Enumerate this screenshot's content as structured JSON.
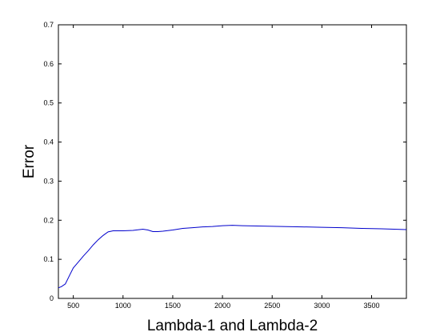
{
  "chart_data": {
    "type": "line",
    "title": "",
    "xlabel": "Lambda-1 and Lambda-2",
    "ylabel": "Error",
    "xlim": [
      350,
      3850
    ],
    "ylim": [
      0,
      0.7
    ],
    "xticks": [
      500,
      1000,
      1500,
      2000,
      2500,
      3000,
      3500
    ],
    "xtick_labels": [
      "500",
      "1000",
      "1500",
      "2000",
      "2500",
      "3000",
      "3500"
    ],
    "yticks": [
      0,
      0.1,
      0.2,
      0.3,
      0.4,
      0.5,
      0.6,
      0.7
    ],
    "ytick_labels": [
      "0",
      "0.1",
      "0.2",
      "0.3",
      "0.4",
      "0.5",
      "0.6",
      "0.7"
    ],
    "grid": false,
    "legend": null,
    "series": [
      {
        "name": "Error",
        "color": "#0000cc",
        "x": [
          350,
          380,
          420,
          460,
          500,
          550,
          600,
          650,
          700,
          750,
          800,
          850,
          900,
          950,
          1000,
          1100,
          1200,
          1250,
          1300,
          1350,
          1400,
          1500,
          1600,
          1700,
          1800,
          1900,
          2000,
          2100,
          2200,
          2400,
          2600,
          2800,
          3000,
          3200,
          3400,
          3600,
          3850
        ],
        "y": [
          0.027,
          0.03,
          0.037,
          0.058,
          0.078,
          0.093,
          0.108,
          0.122,
          0.137,
          0.15,
          0.161,
          0.17,
          0.173,
          0.173,
          0.173,
          0.174,
          0.177,
          0.175,
          0.171,
          0.171,
          0.172,
          0.175,
          0.179,
          0.181,
          0.183,
          0.184,
          0.186,
          0.187,
          0.186,
          0.185,
          0.184,
          0.183,
          0.182,
          0.181,
          0.179,
          0.178,
          0.176
        ]
      }
    ]
  }
}
